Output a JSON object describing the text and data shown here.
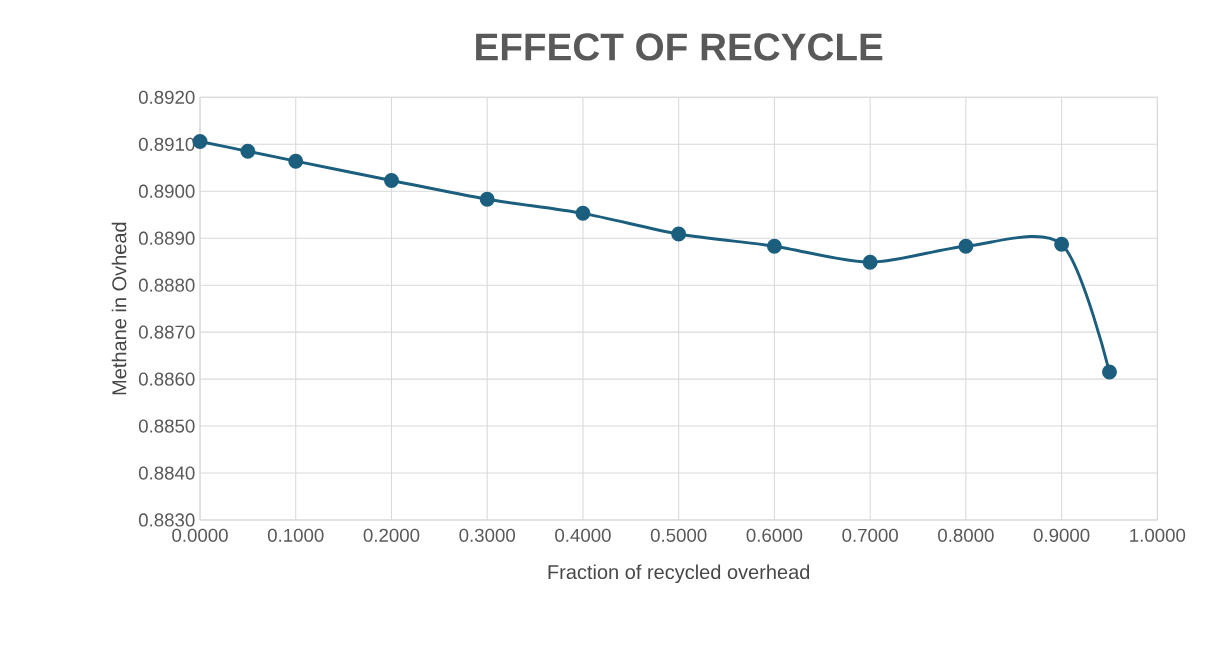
{
  "chart_data": {
    "type": "line",
    "title": "EFFECT OF RECYCLE",
    "xlabel": "Fraction of recycled overhead",
    "ylabel": "Methane in Ovhead",
    "x": [
      0,
      0.05,
      0.1,
      0.2,
      0.3,
      0.4,
      0.5,
      0.6,
      0.7,
      0.8,
      0.9,
      0.95
    ],
    "series": [
      {
        "color": "#1b5e7e",
        "values": [
          0.89106,
          0.89085,
          0.89064,
          0.89023,
          0.88983,
          0.88953,
          0.88909,
          0.88883,
          0.88849,
          0.88883,
          0.88887,
          0.88615
        ]
      }
    ],
    "xlim": [
      0,
      1
    ],
    "ylim": [
      0.883,
      0.892
    ],
    "xticks": [
      {
        "value": 0,
        "label": "0.0000"
      },
      {
        "value": 0.1,
        "label": "0.1000"
      },
      {
        "value": 0.2,
        "label": "0.2000"
      },
      {
        "value": 0.3,
        "label": "0.3000"
      },
      {
        "value": 0.4,
        "label": "0.4000"
      },
      {
        "value": 0.5,
        "label": "0.5000"
      },
      {
        "value": 0.6,
        "label": "0.6000"
      },
      {
        "value": 0.7,
        "label": "0.7000"
      },
      {
        "value": 0.8,
        "label": "0.8000"
      },
      {
        "value": 0.9,
        "label": "0.9000"
      },
      {
        "value": 1,
        "label": "1.0000"
      }
    ],
    "yticks": [
      {
        "value": 0.883,
        "label": "0.8830"
      },
      {
        "value": 0.884,
        "label": "0.8840"
      },
      {
        "value": 0.885,
        "label": "0.8850"
      },
      {
        "value": 0.886,
        "label": "0.8860"
      },
      {
        "value": 0.887,
        "label": "0.8870"
      },
      {
        "value": 0.888,
        "label": "0.8880"
      },
      {
        "value": 0.889,
        "label": "0.8890"
      },
      {
        "value": 0.89,
        "label": "0.8900"
      },
      {
        "value": 0.891,
        "label": "0.8910"
      },
      {
        "value": 0.892,
        "label": "0.8920"
      }
    ],
    "grid": true,
    "marker": "circle",
    "line_style": "solid"
  }
}
